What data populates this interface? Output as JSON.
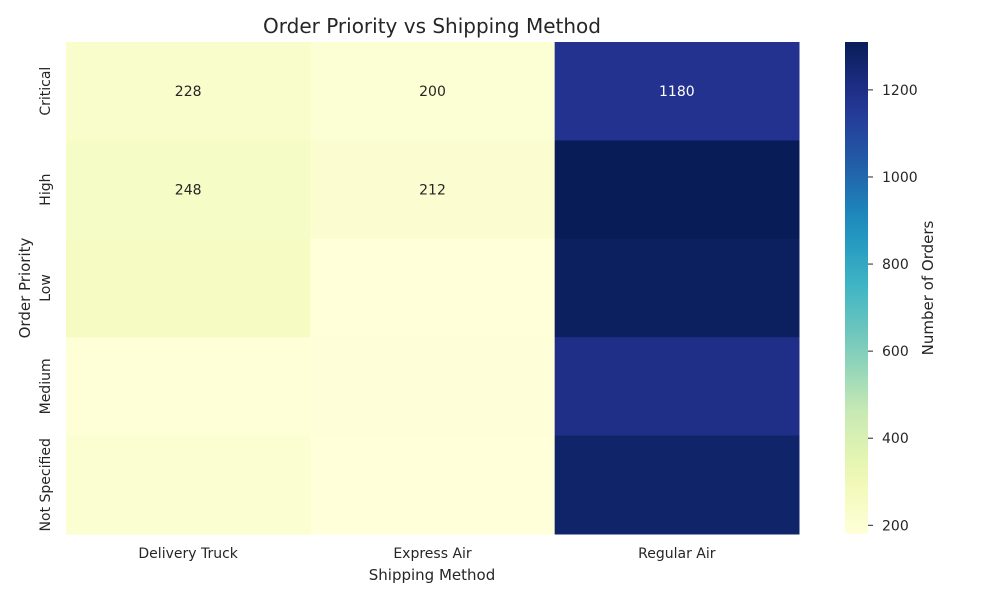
{
  "chart_data": {
    "type": "heatmap",
    "title": "Order Priority vs Shipping Method",
    "xlabel": "Shipping Method",
    "ylabel": "Order Priority",
    "x_categories": [
      "Delivery Truck",
      "Express Air",
      "Regular Air"
    ],
    "y_categories": [
      "Critical",
      "High",
      "Low",
      "Medium",
      "Not Specified"
    ],
    "values": [
      [
        228,
        200,
        1180
      ],
      [
        248,
        212,
        1310
      ],
      [
        262,
        180,
        1290
      ],
      [
        190,
        185,
        1200
      ],
      [
        210,
        180,
        1270
      ]
    ],
    "annotations": [
      [
        "228",
        "200",
        "1180"
      ],
      [
        "248",
        "212",
        ""
      ],
      [
        "",
        "",
        ""
      ],
      [
        "",
        "",
        ""
      ],
      [
        "",
        "",
        ""
      ]
    ],
    "colorbar": {
      "label": "Number of Orders",
      "range": [
        180,
        1310
      ],
      "ticks": [
        200,
        400,
        600,
        800,
        1000,
        1200
      ]
    },
    "colormap": "YlGnBu",
    "grid": false
  }
}
